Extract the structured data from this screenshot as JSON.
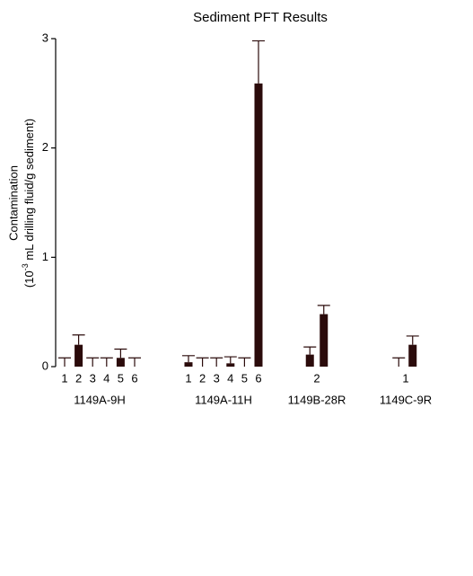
{
  "chart_data": {
    "type": "bar",
    "title": "Sediment PFT Results",
    "ylabel": [
      "Contamination",
      {
        "pre": "(10",
        "sup": "-3",
        "post": " mL drilling fluid/g sediment)"
      }
    ],
    "ylim": [
      0,
      3
    ],
    "yticks": [
      0,
      1,
      2,
      3
    ],
    "color": "#2b0b0b",
    "error_bars": true,
    "groups": [
      {
        "name": "1149A-9H",
        "items": [
          {
            "label": "1",
            "values": [
              0
            ],
            "errors": [
              0.08
            ]
          },
          {
            "label": "2",
            "values": [
              0.2
            ],
            "errors": [
              0.09
            ]
          },
          {
            "label": "3",
            "values": [
              0
            ],
            "errors": [
              0.08
            ]
          },
          {
            "label": "4",
            "values": [
              0
            ],
            "errors": [
              0.08
            ]
          },
          {
            "label": "5",
            "values": [
              0.08
            ],
            "errors": [
              0.08
            ]
          },
          {
            "label": "6",
            "values": [
              0
            ],
            "errors": [
              0.08
            ]
          }
        ]
      },
      {
        "name": "1149A-11H",
        "items": [
          {
            "label": "1",
            "values": [
              0.04
            ],
            "errors": [
              0.06
            ]
          },
          {
            "label": "2",
            "values": [
              0
            ],
            "errors": [
              0.08
            ]
          },
          {
            "label": "3",
            "values": [
              0
            ],
            "errors": [
              0.08
            ]
          },
          {
            "label": "4",
            "values": [
              0.03
            ],
            "errors": [
              0.06
            ]
          },
          {
            "label": "5",
            "values": [
              0
            ],
            "errors": [
              0.08
            ]
          },
          {
            "label": "6",
            "values": [
              2.59
            ],
            "errors": [
              0.39
            ]
          }
        ]
      },
      {
        "name": "1149B-28R",
        "items": [
          {
            "label": "2",
            "values": [
              0.11,
              0.48
            ],
            "errors": [
              0.07,
              0.08
            ]
          }
        ]
      },
      {
        "name": "1149C-9R",
        "items": [
          {
            "label": "1",
            "values": [
              0,
              0.2
            ],
            "errors": [
              0.08,
              0.08
            ]
          }
        ]
      }
    ]
  }
}
